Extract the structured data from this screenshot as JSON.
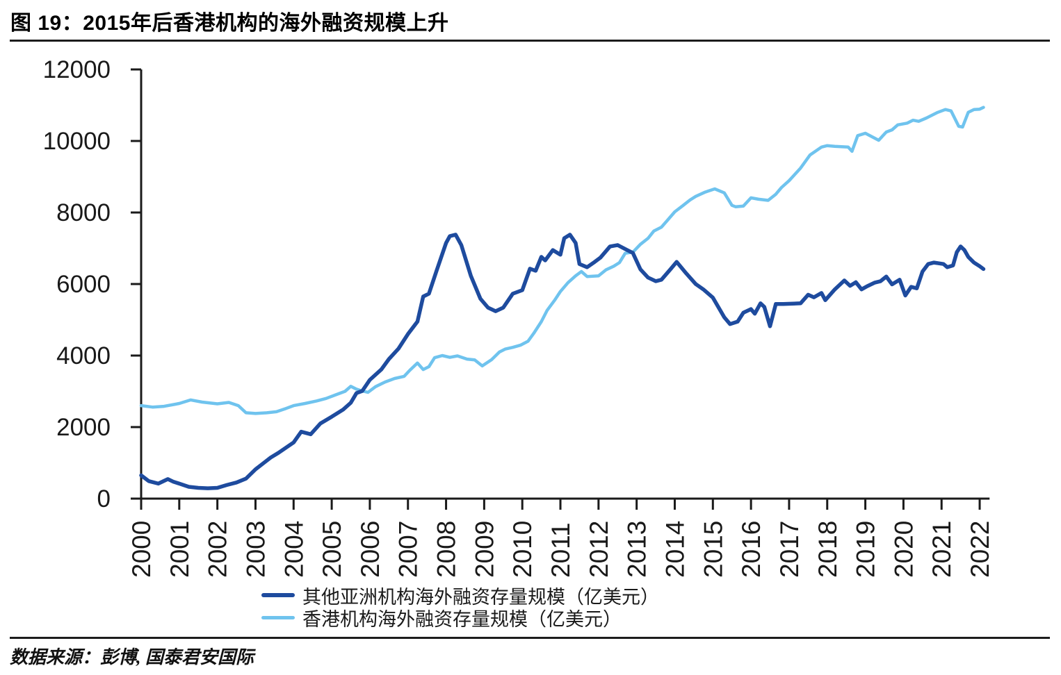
{
  "header": {
    "title": "图 19：2015年后香港机构的海外融资规模上升"
  },
  "footer": {
    "source": "数据来源：彭博, 国泰君安国际"
  },
  "chart_data": {
    "type": "line",
    "title": "图 19：2015年后香港机构的海外融资规模上升",
    "xlabel": "",
    "ylabel": "",
    "ylim": [
      0,
      12000
    ],
    "xlim": [
      2000,
      2022.15
    ],
    "grid": false,
    "legend_position": "bottom",
    "axis_color": "#1a1a1a",
    "y_ticks": [
      0,
      2000,
      4000,
      6000,
      8000,
      10000,
      12000
    ],
    "x_ticks": [
      2000,
      2001,
      2002,
      2003,
      2004,
      2005,
      2006,
      2007,
      2008,
      2009,
      2010,
      2011,
      2012,
      2013,
      2014,
      2015,
      2016,
      2017,
      2018,
      2019,
      2020,
      2021,
      2022
    ],
    "series": [
      {
        "name": "其他亚洲机构海外融资存量规模（亿美元）",
        "color": "#1e4b9e",
        "stroke_width": 5.5,
        "points": [
          [
            2000.0,
            650
          ],
          [
            2000.2,
            490
          ],
          [
            2000.45,
            420
          ],
          [
            2000.7,
            545
          ],
          [
            2000.85,
            470
          ],
          [
            2001.0,
            420
          ],
          [
            2001.25,
            330
          ],
          [
            2001.5,
            300
          ],
          [
            2001.75,
            290
          ],
          [
            2002.0,
            300
          ],
          [
            2002.25,
            380
          ],
          [
            2002.5,
            450
          ],
          [
            2002.75,
            560
          ],
          [
            2003.0,
            820
          ],
          [
            2003.4,
            1150
          ],
          [
            2003.6,
            1280
          ],
          [
            2004.0,
            1570
          ],
          [
            2004.2,
            1870
          ],
          [
            2004.45,
            1800
          ],
          [
            2004.7,
            2100
          ],
          [
            2005.0,
            2290
          ],
          [
            2005.3,
            2490
          ],
          [
            2005.5,
            2680
          ],
          [
            2005.65,
            2950
          ],
          [
            2005.8,
            3010
          ],
          [
            2006.0,
            3320
          ],
          [
            2006.3,
            3610
          ],
          [
            2006.5,
            3900
          ],
          [
            2006.75,
            4190
          ],
          [
            2007.0,
            4600
          ],
          [
            2007.25,
            4950
          ],
          [
            2007.4,
            5650
          ],
          [
            2007.55,
            5730
          ],
          [
            2007.75,
            6370
          ],
          [
            2008.0,
            7150
          ],
          [
            2008.1,
            7340
          ],
          [
            2008.25,
            7380
          ],
          [
            2008.4,
            7090
          ],
          [
            2008.65,
            6230
          ],
          [
            2008.9,
            5590
          ],
          [
            2009.1,
            5340
          ],
          [
            2009.3,
            5240
          ],
          [
            2009.5,
            5340
          ],
          [
            2009.75,
            5730
          ],
          [
            2010.0,
            5830
          ],
          [
            2010.2,
            6430
          ],
          [
            2010.35,
            6370
          ],
          [
            2010.5,
            6760
          ],
          [
            2010.6,
            6660
          ],
          [
            2010.8,
            6950
          ],
          [
            2011.0,
            6820
          ],
          [
            2011.1,
            7280
          ],
          [
            2011.25,
            7380
          ],
          [
            2011.4,
            7150
          ],
          [
            2011.5,
            6560
          ],
          [
            2011.7,
            6470
          ],
          [
            2011.9,
            6620
          ],
          [
            2012.05,
            6740
          ],
          [
            2012.3,
            7050
          ],
          [
            2012.5,
            7090
          ],
          [
            2012.75,
            6950
          ],
          [
            2012.9,
            6870
          ],
          [
            2013.1,
            6410
          ],
          [
            2013.3,
            6180
          ],
          [
            2013.5,
            6080
          ],
          [
            2013.65,
            6120
          ],
          [
            2013.9,
            6430
          ],
          [
            2014.05,
            6620
          ],
          [
            2014.3,
            6300
          ],
          [
            2014.55,
            6000
          ],
          [
            2014.75,
            5850
          ],
          [
            2015.0,
            5620
          ],
          [
            2015.3,
            5070
          ],
          [
            2015.45,
            4880
          ],
          [
            2015.65,
            4950
          ],
          [
            2015.8,
            5200
          ],
          [
            2016.0,
            5300
          ],
          [
            2016.1,
            5170
          ],
          [
            2016.25,
            5460
          ],
          [
            2016.35,
            5360
          ],
          [
            2016.5,
            4820
          ],
          [
            2016.65,
            5440
          ],
          [
            2016.85,
            5440
          ],
          [
            2017.1,
            5450
          ],
          [
            2017.3,
            5460
          ],
          [
            2017.5,
            5700
          ],
          [
            2017.65,
            5630
          ],
          [
            2017.85,
            5750
          ],
          [
            2017.95,
            5550
          ],
          [
            2018.2,
            5850
          ],
          [
            2018.45,
            6100
          ],
          [
            2018.6,
            5950
          ],
          [
            2018.75,
            6050
          ],
          [
            2018.9,
            5850
          ],
          [
            2019.05,
            5940
          ],
          [
            2019.25,
            6040
          ],
          [
            2019.4,
            6080
          ],
          [
            2019.55,
            6210
          ],
          [
            2019.7,
            5990
          ],
          [
            2019.9,
            6120
          ],
          [
            2020.05,
            5680
          ],
          [
            2020.2,
            5920
          ],
          [
            2020.35,
            5880
          ],
          [
            2020.5,
            6350
          ],
          [
            2020.65,
            6560
          ],
          [
            2020.8,
            6600
          ],
          [
            2021.05,
            6560
          ],
          [
            2021.15,
            6470
          ],
          [
            2021.3,
            6520
          ],
          [
            2021.4,
            6890
          ],
          [
            2021.5,
            7050
          ],
          [
            2021.6,
            6950
          ],
          [
            2021.7,
            6760
          ],
          [
            2021.85,
            6600
          ],
          [
            2022.0,
            6500
          ],
          [
            2022.1,
            6420
          ]
        ]
      },
      {
        "name": "香港机构海外融资存量规模（亿美元）",
        "color": "#6fc3ee",
        "stroke_width": 4.5,
        "points": [
          [
            2000.0,
            2600
          ],
          [
            2000.3,
            2560
          ],
          [
            2000.6,
            2580
          ],
          [
            2001.0,
            2660
          ],
          [
            2001.3,
            2760
          ],
          [
            2001.6,
            2700
          ],
          [
            2002.0,
            2650
          ],
          [
            2002.3,
            2690
          ],
          [
            2002.55,
            2600
          ],
          [
            2002.75,
            2400
          ],
          [
            2003.0,
            2380
          ],
          [
            2003.3,
            2400
          ],
          [
            2003.55,
            2430
          ],
          [
            2003.8,
            2520
          ],
          [
            2004.0,
            2600
          ],
          [
            2004.3,
            2660
          ],
          [
            2004.6,
            2730
          ],
          [
            2004.85,
            2800
          ],
          [
            2005.1,
            2900
          ],
          [
            2005.35,
            3000
          ],
          [
            2005.5,
            3140
          ],
          [
            2005.65,
            3060
          ],
          [
            2005.8,
            3010
          ],
          [
            2005.95,
            2970
          ],
          [
            2006.15,
            3130
          ],
          [
            2006.4,
            3260
          ],
          [
            2006.65,
            3360
          ],
          [
            2006.9,
            3420
          ],
          [
            2007.05,
            3590
          ],
          [
            2007.25,
            3790
          ],
          [
            2007.4,
            3610
          ],
          [
            2007.55,
            3690
          ],
          [
            2007.7,
            3940
          ],
          [
            2007.9,
            4000
          ],
          [
            2008.1,
            3950
          ],
          [
            2008.3,
            3990
          ],
          [
            2008.55,
            3900
          ],
          [
            2008.75,
            3880
          ],
          [
            2008.95,
            3710
          ],
          [
            2009.2,
            3890
          ],
          [
            2009.4,
            4100
          ],
          [
            2009.55,
            4180
          ],
          [
            2009.75,
            4230
          ],
          [
            2009.95,
            4290
          ],
          [
            2010.15,
            4400
          ],
          [
            2010.3,
            4620
          ],
          [
            2010.5,
            4950
          ],
          [
            2010.65,
            5260
          ],
          [
            2010.85,
            5550
          ],
          [
            2011.0,
            5790
          ],
          [
            2011.2,
            6040
          ],
          [
            2011.4,
            6230
          ],
          [
            2011.55,
            6350
          ],
          [
            2011.7,
            6210
          ],
          [
            2012.0,
            6230
          ],
          [
            2012.2,
            6400
          ],
          [
            2012.4,
            6500
          ],
          [
            2012.55,
            6600
          ],
          [
            2012.7,
            6860
          ],
          [
            2012.9,
            6890
          ],
          [
            2013.1,
            7110
          ],
          [
            2013.3,
            7280
          ],
          [
            2013.45,
            7480
          ],
          [
            2013.65,
            7590
          ],
          [
            2013.8,
            7770
          ],
          [
            2014.0,
            8020
          ],
          [
            2014.2,
            8180
          ],
          [
            2014.4,
            8350
          ],
          [
            2014.55,
            8450
          ],
          [
            2014.8,
            8570
          ],
          [
            2015.05,
            8660
          ],
          [
            2015.3,
            8550
          ],
          [
            2015.5,
            8200
          ],
          [
            2015.6,
            8160
          ],
          [
            2015.8,
            8180
          ],
          [
            2016.0,
            8410
          ],
          [
            2016.2,
            8370
          ],
          [
            2016.45,
            8340
          ],
          [
            2016.65,
            8510
          ],
          [
            2016.8,
            8700
          ],
          [
            2017.0,
            8890
          ],
          [
            2017.3,
            9240
          ],
          [
            2017.55,
            9610
          ],
          [
            2017.85,
            9830
          ],
          [
            2018.0,
            9870
          ],
          [
            2018.2,
            9850
          ],
          [
            2018.55,
            9830
          ],
          [
            2018.65,
            9710
          ],
          [
            2018.8,
            10150
          ],
          [
            2019.0,
            10215
          ],
          [
            2019.35,
            10020
          ],
          [
            2019.55,
            10250
          ],
          [
            2019.7,
            10310
          ],
          [
            2019.85,
            10450
          ],
          [
            2020.1,
            10500
          ],
          [
            2020.25,
            10580
          ],
          [
            2020.4,
            10550
          ],
          [
            2020.6,
            10640
          ],
          [
            2020.9,
            10800
          ],
          [
            2021.1,
            10880
          ],
          [
            2021.25,
            10840
          ],
          [
            2021.45,
            10410
          ],
          [
            2021.55,
            10390
          ],
          [
            2021.7,
            10800
          ],
          [
            2021.85,
            10880
          ],
          [
            2022.0,
            10890
          ],
          [
            2022.1,
            10940
          ]
        ]
      }
    ]
  }
}
